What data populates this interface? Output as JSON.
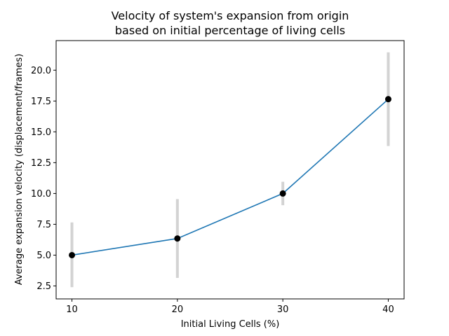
{
  "chart_data": {
    "type": "line",
    "title_lines": [
      "Velocity of system's expansion from origin",
      "based on initial percentage of living cells"
    ],
    "xlabel": "Initial Living Cells (%)",
    "ylabel": "Average expansion velocity (displacement/frames)",
    "x": [
      10,
      20,
      30,
      40
    ],
    "series": [
      {
        "values": [
          5.0,
          6.35,
          10.0,
          17.65
        ],
        "error_low": [
          2.4,
          3.15,
          9.05,
          13.85
        ],
        "error_high": [
          7.65,
          9.55,
          10.95,
          21.45
        ],
        "line_color": "#1f77b4",
        "marker_color": "#000000",
        "error_color": "#d3d3d3"
      }
    ],
    "x_ticks": [
      10,
      20,
      30,
      40
    ],
    "y_ticks": [
      2.5,
      5.0,
      7.5,
      10.0,
      12.5,
      15.0,
      17.5,
      20.0
    ],
    "y_tick_labels": [
      "2.5",
      "5.0",
      "7.5",
      "10.0",
      "12.5",
      "15.0",
      "17.5",
      "20.0"
    ],
    "xlim": [
      8.5,
      41.5
    ],
    "ylim": [
      1.45,
      22.4
    ],
    "grid": false,
    "legend": "none"
  }
}
